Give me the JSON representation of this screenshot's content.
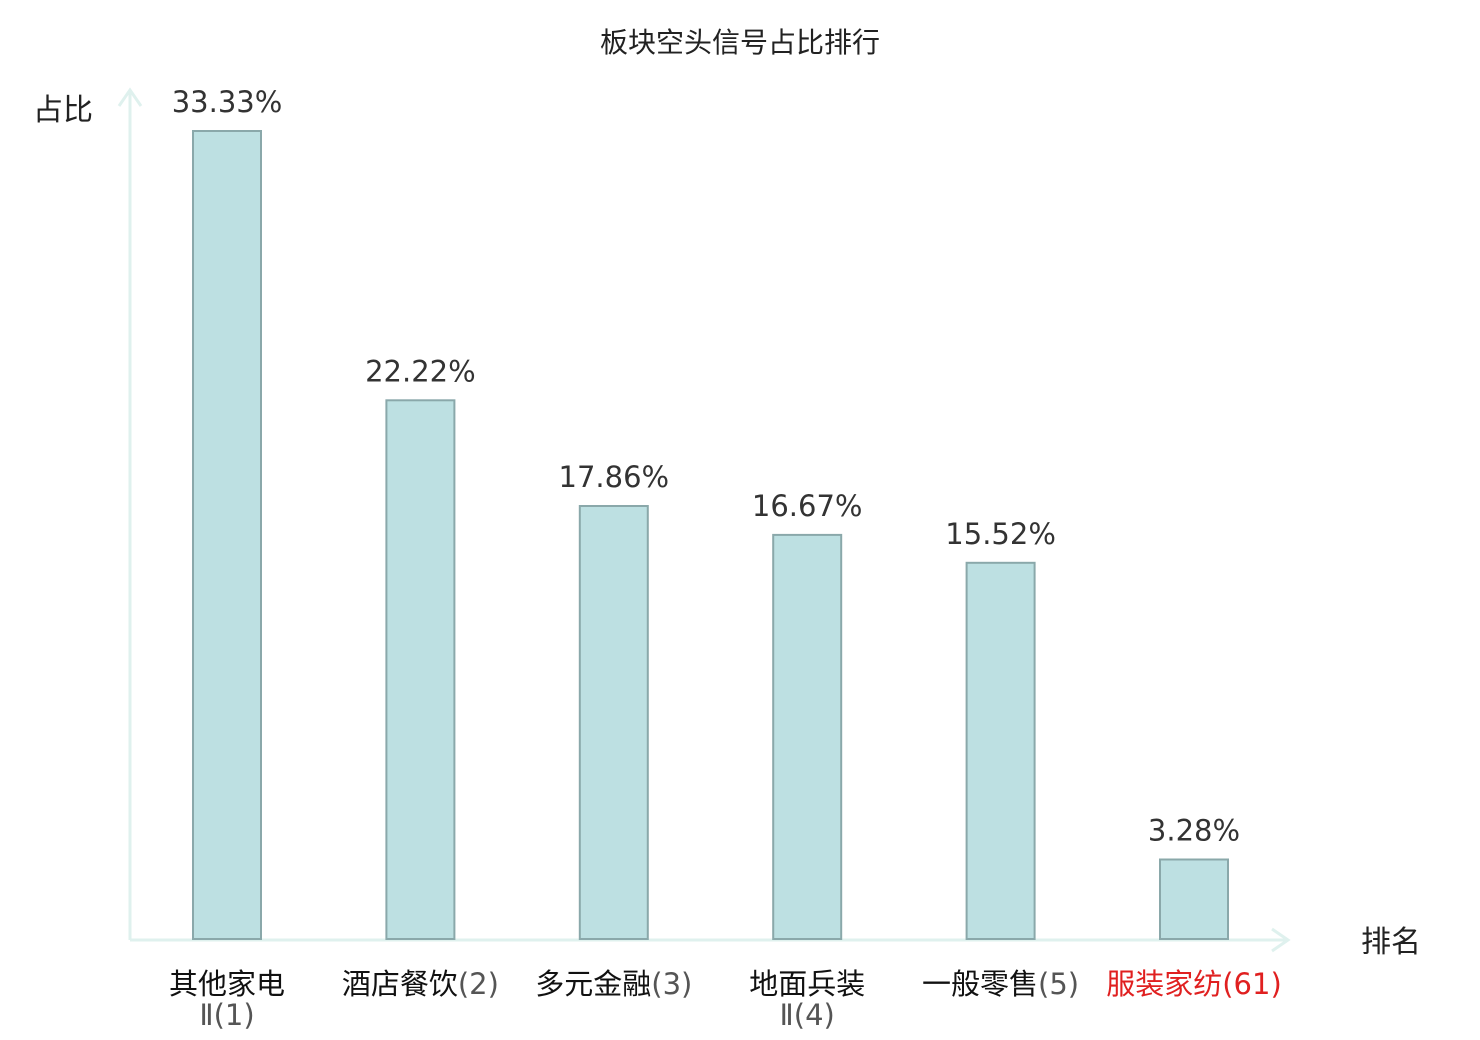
{
  "chart_data": {
    "type": "bar",
    "title": "板块空头信号占比排行",
    "ylabel": "占比",
    "xlabel": "排名",
    "ylim": [
      0,
      35
    ],
    "grid": false,
    "legend": "none",
    "categories": [
      {
        "name": "其他家电",
        "rank": "Ⅱ(1)",
        "wrap": true,
        "highlight": false
      },
      {
        "name": "酒店餐饮",
        "rank": "(2)",
        "wrap": false,
        "highlight": false
      },
      {
        "name": "多元金融",
        "rank": "(3)",
        "wrap": false,
        "highlight": false
      },
      {
        "name": "地面兵装",
        "rank": "Ⅱ(4)",
        "wrap": true,
        "highlight": false
      },
      {
        "name": "一般零售",
        "rank": "(5)",
        "wrap": false,
        "highlight": false
      },
      {
        "name": "服装家纺",
        "rank": "(61)",
        "wrap": false,
        "highlight": true
      }
    ],
    "values": [
      33.33,
      22.22,
      17.86,
      16.67,
      15.52,
      3.28
    ],
    "value_labels": [
      "33.33%",
      "22.22%",
      "17.86%",
      "16.67%",
      "15.52%",
      "3.28%"
    ],
    "colors": {
      "bar_fill": "#bde0e2",
      "bar_stroke": "#8aa8aa",
      "axis": "#dff1ee",
      "highlight": "#e02020"
    }
  }
}
